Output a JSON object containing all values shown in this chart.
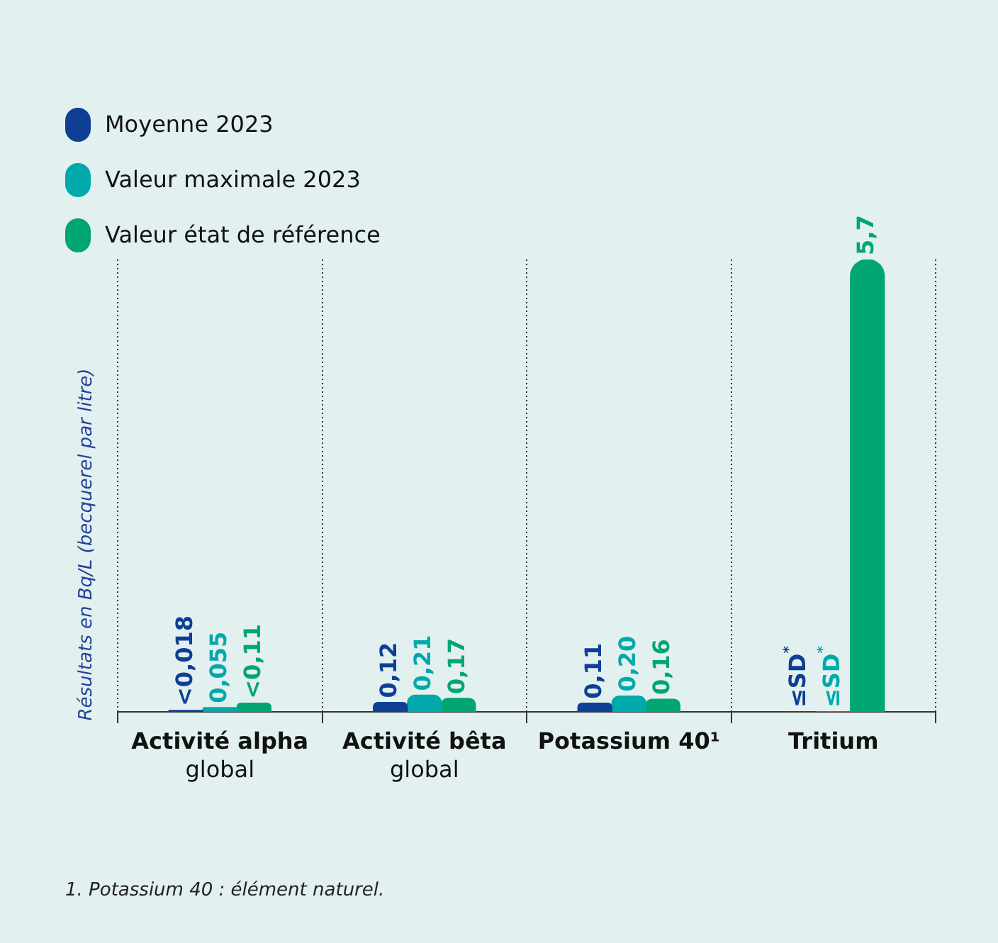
{
  "chart_data": {
    "type": "bar",
    "categories": [
      "Activité alpha\nglobal",
      "Activité bêta\nglobal",
      "Potassium 40¹",
      "Tritium"
    ],
    "ylabel": "Résultats en Bq/L (becquerel par litre)",
    "series": [
      {
        "name": "Moyenne 2023",
        "color": "#0f3f94",
        "values": [
          0.018,
          0.12,
          0.11,
          0
        ],
        "value_labels": [
          "<0,018",
          "0,12",
          "0,11",
          "≤SD$^{*}$"
        ]
      },
      {
        "name": "Valeur maximale 2023",
        "color": "#00a9ab",
        "values": [
          0.055,
          0.21,
          0.2,
          0
        ],
        "value_labels": [
          "0,055",
          "0,21",
          "0,20",
          "≤SD$^{*}$"
        ]
      },
      {
        "name": "Valeur état de référence",
        "color": "#00a672",
        "values": [
          0.11,
          0.17,
          0.16,
          5.7
        ],
        "value_labels": [
          "<0,11",
          "0,17",
          "0,16",
          "5,7"
        ]
      }
    ],
    "legend": "top left",
    "grid": "x",
    "annotations": [
      "1. Potassium 40 : élément naturel."
    ]
  }
}
